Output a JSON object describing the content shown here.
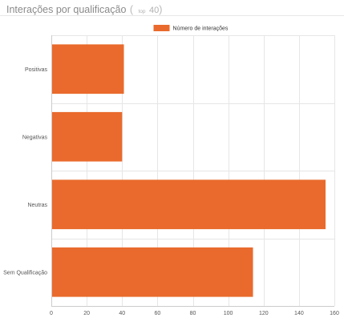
{
  "header": {
    "title": "Interações por qualificação",
    "paren_open": "(",
    "top_label": "top",
    "top_value": "40",
    "paren_close": ")"
  },
  "chart_data": {
    "type": "bar",
    "orientation": "horizontal",
    "categories": [
      "Positivas",
      "Negativas",
      "Neutras",
      "Sem Qualificação"
    ],
    "series": [
      {
        "name": "Número de interações",
        "values": [
          41,
          40,
          155,
          114
        ],
        "color": "#e96a2c"
      }
    ],
    "xlim": [
      0,
      160
    ],
    "xticks": [
      0,
      20,
      40,
      60,
      80,
      100,
      120,
      140,
      160
    ],
    "grid": true,
    "legend": "top-center"
  }
}
